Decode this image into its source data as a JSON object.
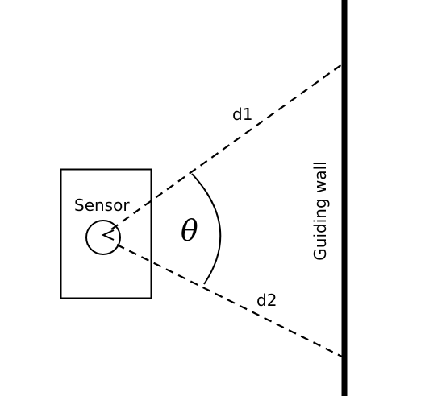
{
  "diagram": {
    "sensor_label": "Sensor",
    "angle_label": "θ",
    "distance_1_label": "d1",
    "distance_2_label": "d2",
    "wall_label": "Guiding wall"
  },
  "colors": {
    "ink": "#000000",
    "background": "#ffffff"
  },
  "icons": {
    "sensor_emitter": "chevron-left-icon"
  }
}
